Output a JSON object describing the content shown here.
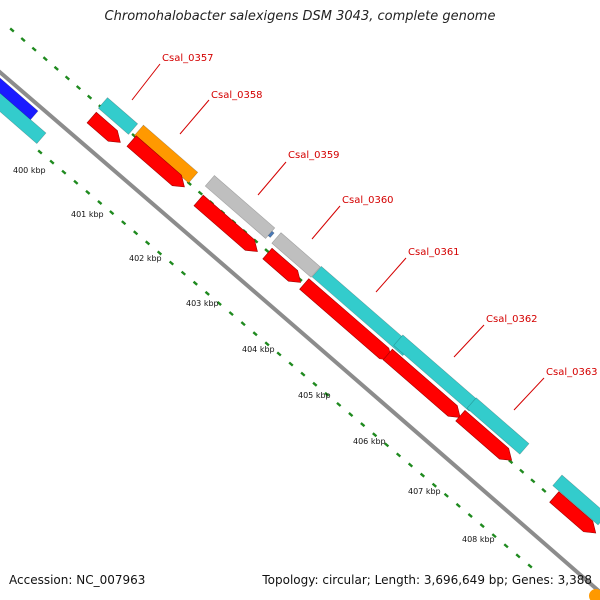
{
  "title": "Chromohalobacter salexigens DSM 3043, complete genome",
  "footer": {
    "accession": "Accession: NC_007963",
    "topology": "Topology: circular; Length: 3,696,649 bp; Genes: 3,388"
  },
  "colors": {
    "backbone": "#8c8c8c",
    "tick": "#1f8a1f",
    "label": "#d40000",
    "cds": "#ff0000",
    "gene": "#33cccc",
    "blue_feature": "#1a1aff",
    "orange_feature": "#ff9900",
    "gray_feature": "#bfbfbf",
    "steel_feature": "#4a7ab8"
  },
  "kbp_ticks": [
    "400 kbp",
    "401 kbp",
    "402 kbp",
    "403 kbp",
    "404 kbp",
    "405 kbp",
    "406 kbp",
    "407 kbp",
    "408 kbp"
  ],
  "gene_labels": [
    "Csal_0357",
    "Csal_0358",
    "Csal_0359",
    "Csal_0360",
    "Csal_0361",
    "Csal_0362",
    "Csal_0363"
  ]
}
